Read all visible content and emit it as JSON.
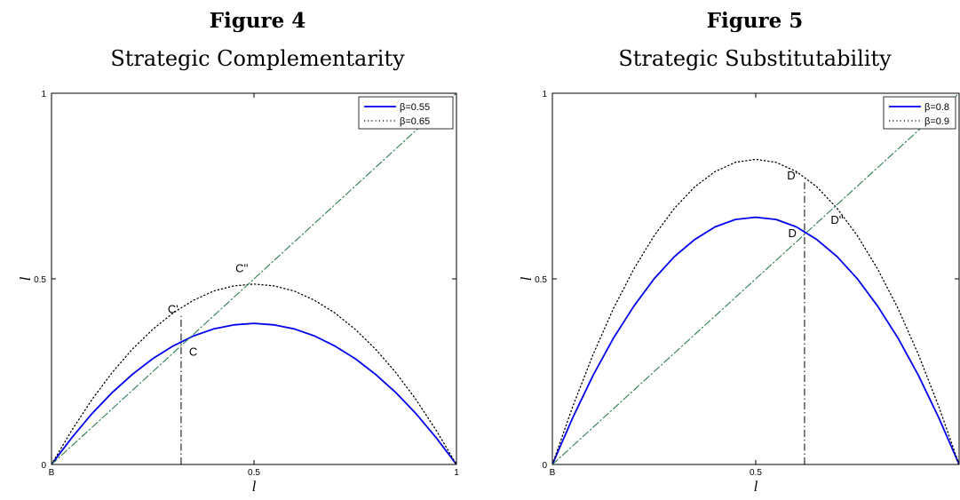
{
  "chart_data": [
    {
      "type": "line",
      "title": "Figure 4",
      "subtitle": "Strategic Complementarity",
      "xlabel": "l",
      "ylabel": "l",
      "xlim": [
        0,
        1
      ],
      "ylim": [
        0,
        1
      ],
      "x_ticks": [
        {
          "value": 0,
          "label": "B"
        },
        {
          "value": 0.5,
          "label": "0.5"
        },
        {
          "value": 1,
          "label": "1"
        }
      ],
      "y_ticks": [
        {
          "value": 0,
          "label": "0"
        },
        {
          "value": 0.5,
          "label": "0.5"
        },
        {
          "value": 1,
          "label": "1"
        }
      ],
      "grid": false,
      "legend_position": "top-right",
      "series": [
        {
          "name": "β=0.55",
          "style": "solid",
          "color": "#0000ee",
          "x": [
            0,
            0.05,
            0.1,
            0.15,
            0.2,
            0.25,
            0.3,
            0.35,
            0.4,
            0.45,
            0.5,
            0.55,
            0.6,
            0.65,
            0.7,
            0.75,
            0.8,
            0.85,
            0.9,
            0.95,
            1
          ],
          "y": [
            0,
            0.072,
            0.137,
            0.194,
            0.243,
            0.285,
            0.319,
            0.346,
            0.365,
            0.376,
            0.38,
            0.376,
            0.365,
            0.346,
            0.319,
            0.285,
            0.243,
            0.194,
            0.137,
            0.072,
            0
          ]
        },
        {
          "name": "β=0.65",
          "style": "dotted",
          "color": "#000000",
          "x": [
            0,
            0.05,
            0.1,
            0.15,
            0.2,
            0.25,
            0.3,
            0.35,
            0.4,
            0.45,
            0.5,
            0.55,
            0.6,
            0.65,
            0.7,
            0.75,
            0.8,
            0.85,
            0.9,
            0.95,
            1
          ],
          "y": [
            0,
            0.092,
            0.175,
            0.248,
            0.311,
            0.364,
            0.408,
            0.442,
            0.467,
            0.481,
            0.486,
            0.481,
            0.467,
            0.442,
            0.408,
            0.364,
            0.311,
            0.248,
            0.175,
            0.092,
            0
          ]
        },
        {
          "style": "dash-dot",
          "color": "#2e7d4f",
          "x": [
            0,
            1
          ],
          "y": [
            0,
            1
          ]
        }
      ],
      "vline": {
        "x": 0.32,
        "y_from": 0,
        "y_to": 0.4,
        "style": "dash-dot",
        "color": "#000000"
      },
      "annotations": [
        {
          "text": "C'",
          "x": 0.3,
          "y": 0.42
        },
        {
          "text": "C''",
          "x": 0.47,
          "y": 0.53
        },
        {
          "text": "C",
          "x": 0.35,
          "y": 0.305
        }
      ]
    },
    {
      "type": "line",
      "title": "Figure 5",
      "subtitle": "Strategic Substitutability",
      "xlabel": "l",
      "ylabel": "l",
      "xlim": [
        0,
        1
      ],
      "ylim": [
        0,
        1
      ],
      "x_ticks": [
        {
          "value": 0,
          "label": "B"
        },
        {
          "value": 0.5,
          "label": "0.5"
        }
      ],
      "y_ticks": [
        {
          "value": 0,
          "label": "0"
        },
        {
          "value": 0.5,
          "label": "0.5"
        },
        {
          "value": 1,
          "label": "1"
        }
      ],
      "grid": false,
      "legend_position": "top-right",
      "series": [
        {
          "name": "β=0.8",
          "style": "solid",
          "color": "#0000ee",
          "x": [
            0,
            0.05,
            0.1,
            0.15,
            0.2,
            0.25,
            0.3,
            0.35,
            0.4,
            0.45,
            0.5,
            0.55,
            0.6,
            0.65,
            0.7,
            0.75,
            0.8,
            0.85,
            0.9,
            0.95,
            1
          ],
          "y": [
            0,
            0.126,
            0.24,
            0.34,
            0.426,
            0.5,
            0.56,
            0.606,
            0.64,
            0.66,
            0.666,
            0.66,
            0.64,
            0.606,
            0.56,
            0.5,
            0.426,
            0.34,
            0.24,
            0.126,
            0
          ]
        },
        {
          "name": "β=0.9",
          "style": "dotted",
          "color": "#000000",
          "x": [
            0,
            0.05,
            0.1,
            0.15,
            0.2,
            0.25,
            0.3,
            0.35,
            0.4,
            0.45,
            0.5,
            0.55,
            0.6,
            0.65,
            0.7,
            0.75,
            0.8,
            0.85,
            0.9,
            0.95,
            1
          ],
          "y": [
            0,
            0.156,
            0.296,
            0.42,
            0.526,
            0.616,
            0.69,
            0.748,
            0.789,
            0.814,
            0.822,
            0.814,
            0.789,
            0.748,
            0.69,
            0.616,
            0.526,
            0.42,
            0.296,
            0.156,
            0
          ]
        },
        {
          "style": "dash-dot",
          "color": "#2e7d4f",
          "x": [
            0,
            1
          ],
          "y": [
            0,
            1
          ]
        }
      ],
      "vline": {
        "x": 0.62,
        "y_from": 0,
        "y_to": 0.76,
        "style": "dash-dot",
        "color": "#000000"
      },
      "annotations": [
        {
          "text": "D'",
          "x": 0.59,
          "y": 0.78
        },
        {
          "text": "D''",
          "x": 0.7,
          "y": 0.66
        },
        {
          "text": "D",
          "x": 0.59,
          "y": 0.625
        }
      ]
    }
  ]
}
